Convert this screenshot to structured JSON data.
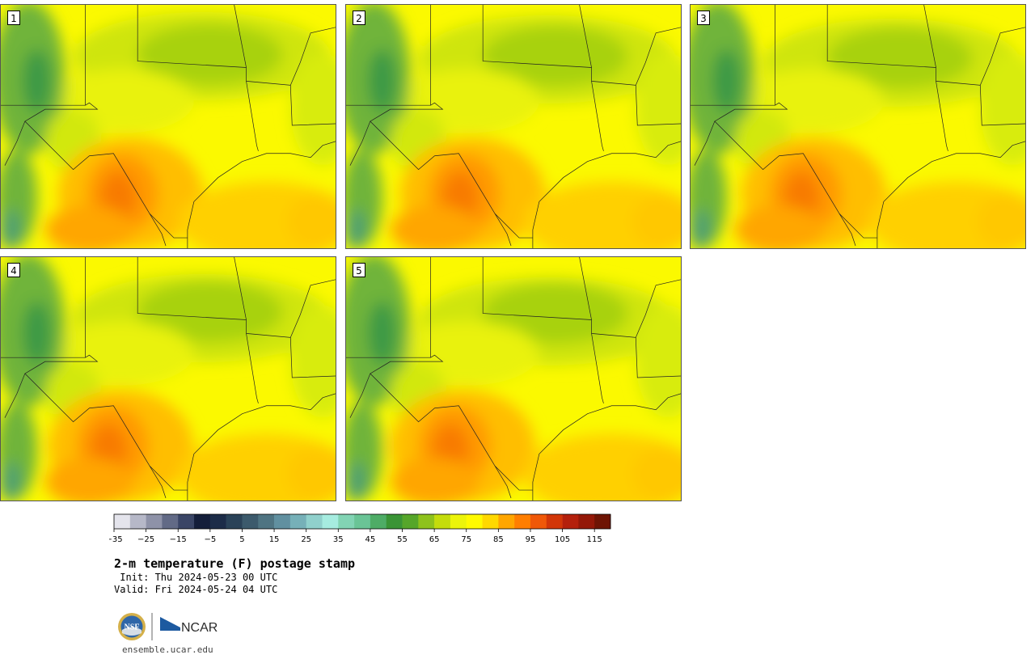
{
  "title": "2-m temperature (F) postage stamp",
  "init_line": " Init: Thu 2024-05-23 00 UTC",
  "valid_line": "Valid: Fri 2024-05-24 04 UTC",
  "url": "ensemble.ucar.edu",
  "logos": {
    "nsf_text": "NSF",
    "ncar_text": "NCAR"
  },
  "panels": [
    {
      "label": "1"
    },
    {
      "label": "2"
    },
    {
      "label": "3"
    },
    {
      "label": "4"
    },
    {
      "label": "5"
    }
  ],
  "colorbar": {
    "ticks": [
      "−35",
      "−25",
      "−15",
      "−5",
      "5",
      "15",
      "25",
      "35",
      "45",
      "55",
      "65",
      "75",
      "85",
      "95",
      "105",
      "115"
    ],
    "colors": [
      "#e4e4ec",
      "#b6b8c8",
      "#8e92a8",
      "#626a86",
      "#3a4566",
      "#141e3a",
      "#1c2c48",
      "#2a4258",
      "#3c5a6c",
      "#4f7482",
      "#6190a0",
      "#76b0b8",
      "#90d0cc",
      "#a6ece0",
      "#82d4b4",
      "#6ac496",
      "#4eac66",
      "#3a9436",
      "#56a62a",
      "#8ec21c",
      "#c4dc0c",
      "#ecf40a",
      "#fffa00",
      "#ffd800",
      "#ffa600",
      "#ff7e00",
      "#f05808",
      "#d23608",
      "#b4200c",
      "#941808",
      "#6e1404"
    ]
  }
}
